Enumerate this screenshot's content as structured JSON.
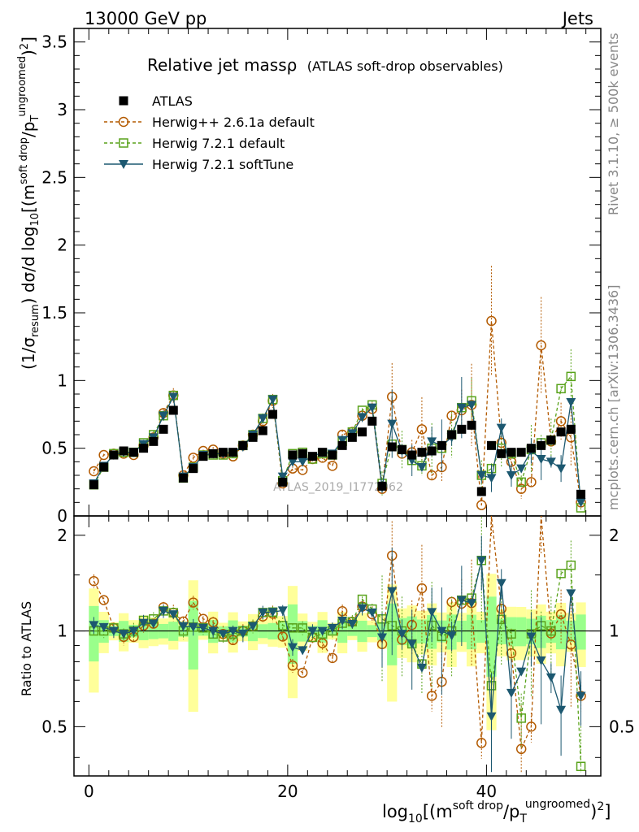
{
  "header": {
    "left": "13000 GeV pp",
    "right": "Jets"
  },
  "side_texts": {
    "rivet": "Rivet 3.1.10, ≥ 500k events",
    "mcplots": "mcplots.cern.ch [arXiv:1306.3436]"
  },
  "chart_data": {
    "type": "line",
    "title": "Relative jet massρ",
    "subtitle": "(ATLAS soft-drop observables)",
    "watermark": "ATLAS_2019_I1772062",
    "ylabel_text": "(1/σresum) dσ/d log10[(m soft drop/pT ungroomed)2]",
    "xlabel_text": "log10[(m soft drop/pT ungroomed)2]",
    "ratio_ylabel": "Ratio to ATLAS",
    "xlim": [
      -1.5,
      51.5
    ],
    "ylim": [
      0,
      3.6
    ],
    "ratio_ylim": [
      0.35,
      2.3
    ],
    "x_ticks": [
      0,
      20,
      40
    ],
    "y_ticks": [
      0,
      0.5,
      1,
      1.5,
      2,
      2.5,
      3,
      3.5
    ],
    "ratio_ticks": [
      0.5,
      1,
      2
    ],
    "legend": [
      {
        "name": "ATLAS",
        "marker": "square-filled",
        "color": "#000000"
      },
      {
        "name": "Herwig++ 2.6.1a default",
        "marker": "circle-open",
        "color": "#b35a00"
      },
      {
        "name": "Herwig 7.2.1 default",
        "marker": "square-open",
        "color": "#58a21a"
      },
      {
        "name": "Herwig 7.2.1 softTune",
        "marker": "triangle-down",
        "color": "#1c5870"
      }
    ],
    "x": [
      0.5,
      1.5,
      2.5,
      3.5,
      4.5,
      5.5,
      6.5,
      7.5,
      8.5,
      9.5,
      10.5,
      11.5,
      12.5,
      13.5,
      14.5,
      15.5,
      16.5,
      17.5,
      18.5,
      19.5,
      20.5,
      21.5,
      22.5,
      23.5,
      24.5,
      25.5,
      26.5,
      27.5,
      28.5,
      29.5,
      30.5,
      31.5,
      32.5,
      33.5,
      34.5,
      35.5,
      36.5,
      37.5,
      38.5,
      39.5,
      40.5,
      41.5,
      42.5,
      43.5,
      44.5,
      45.5,
      46.5,
      47.5,
      48.5,
      49.5
    ],
    "series": [
      {
        "name": "ATLAS",
        "values": [
          0.23,
          0.36,
          0.45,
          0.48,
          0.47,
          0.5,
          0.55,
          0.64,
          0.78,
          0.28,
          0.35,
          0.44,
          0.46,
          0.47,
          0.47,
          0.52,
          0.58,
          0.63,
          0.75,
          0.25,
          0.45,
          0.46,
          0.44,
          0.47,
          0.45,
          0.52,
          0.58,
          0.62,
          0.7,
          0.22,
          0.51,
          0.49,
          0.45,
          0.47,
          0.48,
          0.52,
          0.6,
          0.64,
          0.67,
          0.18,
          0.52,
          0.46,
          0.47,
          0.47,
          0.5,
          0.52,
          0.56,
          0.62,
          0.64,
          0.16
        ]
      },
      {
        "name": "Herwig++ 2.6.1a default",
        "values": [
          0.33,
          0.45,
          0.46,
          0.46,
          0.45,
          0.52,
          0.58,
          0.76,
          0.89,
          0.3,
          0.43,
          0.48,
          0.49,
          0.46,
          0.44,
          0.52,
          0.6,
          0.7,
          0.85,
          0.24,
          0.35,
          0.34,
          0.42,
          0.43,
          0.37,
          0.6,
          0.62,
          0.74,
          0.79,
          0.2,
          0.88,
          0.46,
          0.47,
          0.64,
          0.3,
          0.36,
          0.74,
          0.78,
          0.82,
          0.08,
          1.44,
          0.54,
          0.4,
          0.2,
          0.25,
          1.26,
          0.55,
          0.7,
          0.58,
          0.1
        ]
      },
      {
        "name": "Herwig 7.2.1 default",
        "values": [
          0.23,
          0.36,
          0.46,
          0.47,
          0.47,
          0.54,
          0.6,
          0.74,
          0.89,
          0.28,
          0.36,
          0.45,
          0.45,
          0.45,
          0.46,
          0.52,
          0.6,
          0.72,
          0.86,
          0.26,
          0.46,
          0.47,
          0.42,
          0.46,
          0.45,
          0.55,
          0.62,
          0.78,
          0.82,
          0.24,
          0.53,
          0.49,
          0.41,
          0.37,
          0.5,
          0.5,
          0.6,
          0.8,
          0.85,
          0.3,
          0.35,
          0.5,
          0.46,
          0.25,
          0.49,
          0.54,
          0.56,
          0.94,
          1.03,
          0.06
        ]
      },
      {
        "name": "Herwig 7.2.1 softTune",
        "values": [
          0.24,
          0.37,
          0.45,
          0.47,
          0.47,
          0.53,
          0.58,
          0.74,
          0.88,
          0.29,
          0.36,
          0.45,
          0.46,
          0.46,
          0.47,
          0.51,
          0.6,
          0.72,
          0.86,
          0.29,
          0.4,
          0.4,
          0.44,
          0.47,
          0.46,
          0.56,
          0.61,
          0.73,
          0.8,
          0.21,
          0.68,
          0.48,
          0.41,
          0.36,
          0.55,
          0.52,
          0.58,
          0.8,
          0.82,
          0.3,
          0.28,
          0.65,
          0.3,
          0.35,
          0.48,
          0.42,
          0.4,
          0.35,
          0.84,
          0.1
        ]
      }
    ]
  }
}
